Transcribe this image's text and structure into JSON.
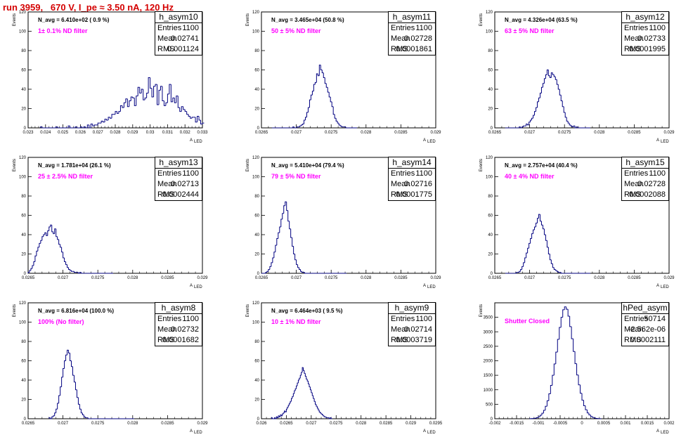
{
  "header": {
    "run_title": "run 3959,   670 V, I_pe ≈ 3.50 nA, 120 Hz"
  },
  "axis_labels": {
    "y": "Events",
    "x": "A",
    "x_sub": "LED"
  },
  "colors": {
    "histogram": "#000080",
    "filter_text": "#ff00ff",
    "title": "#d40000",
    "frame": "#000000"
  },
  "chart_data": [
    {
      "type": "bar",
      "name": "h_asym10",
      "navg": "N_avg = 6.410e+02 ( 0.9 %)",
      "filter": "1± 0.1% ND filter",
      "stats": {
        "entries": "1100",
        "mean": "0.02741",
        "rms": "0.001124"
      },
      "xlim": [
        0.023,
        0.033
      ],
      "ylim": [
        0,
        120
      ],
      "xticks": [
        "0.023",
        "0.024",
        "0.025",
        "0.026",
        "0.027",
        "0.028",
        "0.029",
        "0.03",
        "0.031",
        "0.032",
        "0.033"
      ],
      "yticks": [
        "0",
        "20",
        "40",
        "60",
        "80",
        "100",
        "120"
      ],
      "x_start": 0.0237,
      "bin_width": 0.0001,
      "values": [
        1,
        0,
        0,
        0,
        0,
        0,
        0,
        0,
        0,
        1,
        0,
        0,
        0,
        0,
        0,
        0,
        2,
        0,
        0,
        0,
        1,
        0,
        0,
        1,
        0,
        1,
        0,
        3,
        0,
        4,
        2,
        3,
        3,
        5,
        5,
        7,
        6,
        9,
        8,
        11,
        10,
        14,
        14,
        17,
        15,
        17,
        23,
        21,
        26,
        30,
        22,
        28,
        32,
        31,
        23,
        33,
        42,
        36,
        40,
        29,
        31,
        36,
        52,
        41,
        32,
        43,
        45,
        24,
        39,
        43,
        28,
        23,
        26,
        35,
        45,
        27,
        31,
        26,
        33,
        21,
        17,
        22,
        19,
        17,
        14,
        12,
        10,
        11,
        11,
        6,
        12,
        8,
        4,
        5,
        9,
        4,
        6,
        1,
        2,
        4,
        3,
        1,
        0,
        1,
        1,
        1,
        0,
        1,
        0,
        1,
        0,
        0,
        0,
        0,
        1,
        0,
        0,
        1,
        0,
        0,
        0,
        0,
        0,
        0,
        0,
        1,
        0,
        0,
        0,
        0,
        1,
        0,
        0,
        0,
        0,
        0,
        0,
        0,
        0
      ]
    },
    {
      "type": "bar",
      "name": "h_asym11",
      "navg": "N_avg = 3.465e+04 (50.8 %)",
      "filter": "50 ± 5% ND filter",
      "stats": {
        "entries": "1100",
        "mean": "0.02728",
        "rms": "0.0001861"
      },
      "xlim": [
        0.0265,
        0.029
      ],
      "ylim": [
        0,
        120
      ],
      "xticks": [
        "0.0265",
        "0.027",
        "0.0275",
        "0.028",
        "0.0285",
        "0.029"
      ],
      "yticks": [
        "0",
        "20",
        "40",
        "60",
        "80",
        "100",
        "120"
      ],
      "x_start": 0.02665,
      "bin_width": 2e-05,
      "values": [
        0,
        0,
        0,
        0,
        0,
        0,
        0,
        0,
        0,
        0,
        0,
        0,
        0,
        0,
        0,
        1,
        0,
        0,
        1,
        1,
        2,
        3,
        4,
        8,
        11,
        16,
        21,
        29,
        34,
        38,
        45,
        47,
        56,
        54,
        65,
        60,
        57,
        52,
        46,
        42,
        37,
        32,
        27,
        22,
        14,
        10,
        7,
        5,
        3,
        2,
        1,
        1,
        1,
        0,
        0,
        0,
        0,
        0,
        0,
        0,
        0
      ]
    },
    {
      "type": "bar",
      "name": "h_asym12",
      "navg": "N_avg = 4.326e+04 (63.5 %)",
      "filter": "63 ± 5% ND filter",
      "stats": {
        "entries": "1100",
        "mean": "0.02733",
        "rms": "0.0001995"
      },
      "xlim": [
        0.0265,
        0.029
      ],
      "ylim": [
        0,
        120
      ],
      "xticks": [
        "0.0265",
        "0.027",
        "0.0275",
        "0.028",
        "0.0285",
        "0.029"
      ],
      "yticks": [
        "0",
        "20",
        "40",
        "60",
        "80",
        "100",
        "120"
      ],
      "x_start": 0.02665,
      "bin_width": 2e-05,
      "values": [
        0,
        0,
        0,
        0,
        0,
        0,
        0,
        0,
        0,
        0,
        1,
        0,
        1,
        2,
        2,
        4,
        3,
        6,
        8,
        10,
        13,
        17,
        21,
        27,
        31,
        36,
        42,
        46,
        51,
        55,
        60,
        54,
        52,
        57,
        55,
        53,
        50,
        45,
        40,
        34,
        28,
        22,
        16,
        11,
        7,
        5,
        3,
        2,
        1,
        2,
        0,
        1,
        0,
        0,
        0,
        0,
        0,
        0,
        0,
        0,
        0
      ]
    },
    {
      "type": "bar",
      "name": "h_asym13",
      "navg": "N_avg = 1.781e+04 (26.1 %)",
      "filter": "25 ± 2.5% ND filter",
      "stats": {
        "entries": "1100",
        "mean": "0.02713",
        "rms": "0.0002444"
      },
      "xlim": [
        0.0265,
        0.029
      ],
      "ylim": [
        0,
        120
      ],
      "xticks": [
        "0.0265",
        "0.027",
        "0.0275",
        "0.028",
        "0.0285",
        "0.029"
      ],
      "yticks": [
        "0",
        "20",
        "40",
        "60",
        "80",
        "100",
        "120"
      ],
      "x_start": 0.0265,
      "bin_width": 2e-05,
      "values": [
        1,
        3,
        5,
        8,
        12,
        18,
        23,
        27,
        31,
        34,
        38,
        40,
        42,
        39,
        44,
        48,
        50,
        43,
        41,
        46,
        38,
        35,
        30,
        27,
        22,
        16,
        12,
        9,
        6,
        4,
        3,
        2,
        2,
        1,
        1,
        1,
        0,
        1,
        0,
        0,
        0,
        0,
        0,
        0,
        0,
        0,
        0,
        0,
        0,
        0,
        0,
        0,
        0,
        0,
        0,
        0,
        0,
        0,
        0,
        0,
        0
      ]
    },
    {
      "type": "bar",
      "name": "h_asym14",
      "navg": "N_avg = 5.410e+04 (79.4 %)",
      "filter": "79 ± 5% ND filter",
      "stats": {
        "entries": "1100",
        "mean": "0.02716",
        "rms": "0.0001775"
      },
      "xlim": [
        0.0265,
        0.029
      ],
      "ylim": [
        0,
        120
      ],
      "xticks": [
        "0.0265",
        "0.027",
        "0.0275",
        "0.028",
        "0.0285",
        "0.029"
      ],
      "yticks": [
        "0",
        "20",
        "40",
        "60",
        "80",
        "100",
        "120"
      ],
      "x_start": 0.0265,
      "bin_width": 2e-05,
      "values": [
        0,
        0,
        0,
        1,
        2,
        4,
        7,
        11,
        16,
        22,
        29,
        36,
        42,
        48,
        56,
        62,
        70,
        74,
        65,
        54,
        46,
        37,
        28,
        20,
        14,
        9,
        6,
        4,
        2,
        1,
        1,
        0,
        0,
        0,
        0,
        0,
        0,
        0,
        0,
        0,
        0,
        0,
        0,
        0,
        0,
        0,
        0,
        0,
        0,
        0,
        0,
        0,
        0,
        0,
        0,
        0,
        0,
        0,
        0,
        0,
        0
      ]
    },
    {
      "type": "bar",
      "name": "h_asym15",
      "navg": "N_avg = 2.757e+04 (40.4 %)",
      "filter": "40 ± 4% ND filter",
      "stats": {
        "entries": "1100",
        "mean": "0.02728",
        "rms": "0.0002088"
      },
      "xlim": [
        0.0265,
        0.029
      ],
      "ylim": [
        0,
        120
      ],
      "xticks": [
        "0.0265",
        "0.027",
        "0.0275",
        "0.028",
        "0.0285",
        "0.029"
      ],
      "yticks": [
        "0",
        "20",
        "40",
        "60",
        "80",
        "100",
        "120"
      ],
      "x_start": 0.02665,
      "bin_width": 2e-05,
      "values": [
        0,
        0,
        0,
        0,
        0,
        0,
        0,
        0,
        1,
        1,
        2,
        4,
        7,
        11,
        16,
        21,
        26,
        31,
        36,
        41,
        45,
        48,
        52,
        57,
        61,
        54,
        50,
        46,
        40,
        34,
        27,
        20,
        14,
        10,
        6,
        4,
        3,
        2,
        1,
        1,
        0,
        0,
        0,
        0,
        0,
        0,
        0,
        0,
        0,
        0,
        0,
        0,
        0,
        0,
        0,
        0,
        0,
        0,
        0,
        0,
        0
      ]
    },
    {
      "type": "bar",
      "name": "h_asym8",
      "navg": "N_avg = 6.816e+04 (100.0 %)",
      "filter": "100% (No filter)",
      "stats": {
        "entries": "1100",
        "mean": "0.02732",
        "rms": "0.0001682"
      },
      "xlim": [
        0.0265,
        0.029
      ],
      "ylim": [
        0,
        120
      ],
      "xticks": [
        "0.0265",
        "0.027",
        "0.0275",
        "0.028",
        "0.0285",
        "0.029"
      ],
      "yticks": [
        "0",
        "20",
        "40",
        "60",
        "80",
        "100",
        "120"
      ],
      "x_start": 0.0268,
      "bin_width": 2e-05,
      "values": [
        1,
        0,
        2,
        3,
        6,
        10,
        16,
        24,
        33,
        43,
        52,
        60,
        66,
        71,
        68,
        60,
        54,
        45,
        38,
        30,
        22,
        15,
        10,
        6,
        4,
        2,
        1,
        1,
        0,
        0,
        0,
        0,
        0,
        0,
        0,
        0,
        0,
        0,
        0,
        0,
        0,
        0,
        0,
        0,
        0,
        0,
        0,
        0,
        0,
        0,
        0,
        0,
        0,
        0,
        0,
        0,
        0,
        0,
        0,
        0,
        0
      ]
    },
    {
      "type": "bar",
      "name": "h_asym9",
      "navg": "N_avg = 6.464e+03 ( 9.5 %)",
      "filter": "10 ± 1% ND filter",
      "stats": {
        "entries": "1100",
        "mean": "0.02714",
        "rms": "0.0003719"
      },
      "xlim": [
        0.026,
        0.0295
      ],
      "ylim": [
        0,
        120
      ],
      "xticks": [
        "0.026",
        "0.0265",
        "0.027",
        "0.0275",
        "0.028",
        "0.0285",
        "0.029",
        "0.0295"
      ],
      "yticks": [
        "0",
        "20",
        "40",
        "60",
        "80",
        "100",
        "120"
      ],
      "x_start": 0.0262,
      "bin_width": 2e-05,
      "values": [
        1,
        0,
        0,
        1,
        0,
        2,
        1,
        3,
        2,
        4,
        3,
        5,
        6,
        8,
        7,
        10,
        12,
        14,
        16,
        18,
        21,
        23,
        26,
        29,
        31,
        34,
        37,
        40,
        42,
        45,
        48,
        53,
        50,
        47,
        44,
        41,
        39,
        36,
        33,
        30,
        27,
        24,
        21,
        18,
        15,
        13,
        11,
        9,
        7,
        6,
        5,
        4,
        3,
        2,
        2,
        1,
        1,
        1,
        0,
        1,
        0
      ]
    },
    {
      "type": "bar",
      "name": "hPed_asym",
      "navg": "",
      "filter": "Shutter Closed",
      "stats": {
        "entries": "50714",
        "mean": "-2.562e-06",
        "rms": "0.0002111"
      },
      "xlim": [
        -0.002,
        0.002
      ],
      "ylim": [
        0,
        4000
      ],
      "xticks": [
        "-0.002",
        "-0.0015",
        "-0.001",
        "-0.0005",
        "0",
        "0.0005",
        "0.001",
        "0.0015",
        "0.002"
      ],
      "yticks": [
        "0",
        "500",
        "1000",
        "1500",
        "2000",
        "2500",
        "3000",
        "3500"
      ],
      "x_start": -0.0012,
      "bin_width": 4e-05,
      "values": [
        2,
        5,
        10,
        20,
        40,
        70,
        120,
        190,
        290,
        430,
        620,
        860,
        1150,
        1500,
        1890,
        2300,
        2740,
        3150,
        3500,
        3760,
        3860,
        3780,
        3540,
        3180,
        2760,
        2320,
        1900,
        1510,
        1170,
        880,
        640,
        450,
        310,
        200,
        130,
        80,
        45,
        25,
        12,
        6,
        3
      ]
    }
  ]
}
